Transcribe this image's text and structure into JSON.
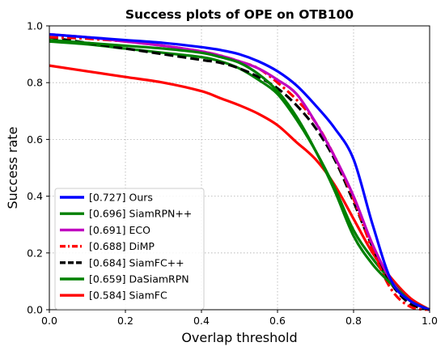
{
  "chart_data": {
    "type": "line",
    "title": "Success plots of OPE on OTB100",
    "xlabel": "Overlap threshold",
    "ylabel": "Success rate",
    "xlim": [
      0,
      1
    ],
    "ylim": [
      0,
      1
    ],
    "x_ticks": [
      "0.0",
      "0.2",
      "0.4",
      "0.6",
      "0.8",
      "1.0"
    ],
    "y_ticks": [
      "0.0",
      "0.2",
      "0.4",
      "0.6",
      "0.8",
      "1.0"
    ],
    "grid": true,
    "legend_position": "lower-left",
    "x": [
      0.0,
      0.1,
      0.2,
      0.3,
      0.4,
      0.45,
      0.5,
      0.55,
      0.6,
      0.65,
      0.7,
      0.75,
      0.8,
      0.85,
      0.9,
      0.95,
      1.0
    ],
    "series": [
      {
        "name": "[0.727] Ours",
        "color": "#0000ff",
        "dash": "solid",
        "values": [
          0.97,
          0.96,
          0.95,
          0.94,
          0.925,
          0.915,
          0.9,
          0.875,
          0.84,
          0.79,
          0.72,
          0.64,
          0.53,
          0.3,
          0.1,
          0.03,
          0.0
        ]
      },
      {
        "name": "[0.696] SiamRPN++",
        "color": "#008000",
        "dash": "solid",
        "values": [
          0.95,
          0.94,
          0.93,
          0.92,
          0.905,
          0.89,
          0.87,
          0.83,
          0.77,
          0.68,
          0.56,
          0.42,
          0.26,
          0.16,
          0.09,
          0.03,
          0.0
        ]
      },
      {
        "name": "[0.691] ECO",
        "color": "#c000c0",
        "dash": "solid",
        "values": [
          0.97,
          0.96,
          0.945,
          0.93,
          0.91,
          0.895,
          0.875,
          0.85,
          0.81,
          0.76,
          0.66,
          0.54,
          0.4,
          0.23,
          0.1,
          0.03,
          0.0
        ]
      },
      {
        "name": "[0.688] DiMP",
        "color": "#ff0000",
        "dash": "dashdot",
        "values": [
          0.96,
          0.955,
          0.945,
          0.93,
          0.91,
          0.895,
          0.875,
          0.85,
          0.8,
          0.74,
          0.66,
          0.54,
          0.39,
          0.21,
          0.07,
          0.01,
          0.0
        ]
      },
      {
        "name": "[0.684] SiamFC++",
        "color": "#000000",
        "dash": "dashed",
        "values": [
          0.96,
          0.94,
          0.92,
          0.9,
          0.88,
          0.87,
          0.85,
          0.82,
          0.78,
          0.72,
          0.64,
          0.53,
          0.38,
          0.22,
          0.09,
          0.02,
          0.0
        ]
      },
      {
        "name": "[0.659] DaSiamRPN",
        "color": "#008000",
        "dash": "solid",
        "values": [
          0.945,
          0.935,
          0.92,
          0.905,
          0.89,
          0.875,
          0.85,
          0.81,
          0.76,
          0.67,
          0.56,
          0.43,
          0.28,
          0.18,
          0.1,
          0.03,
          0.0
        ]
      },
      {
        "name": "[0.584] SiamFC",
        "color": "#ff0000",
        "dash": "solid",
        "values": [
          0.86,
          0.84,
          0.82,
          0.8,
          0.77,
          0.745,
          0.72,
          0.69,
          0.65,
          0.59,
          0.53,
          0.44,
          0.32,
          0.2,
          0.11,
          0.04,
          0.0
        ]
      }
    ]
  }
}
